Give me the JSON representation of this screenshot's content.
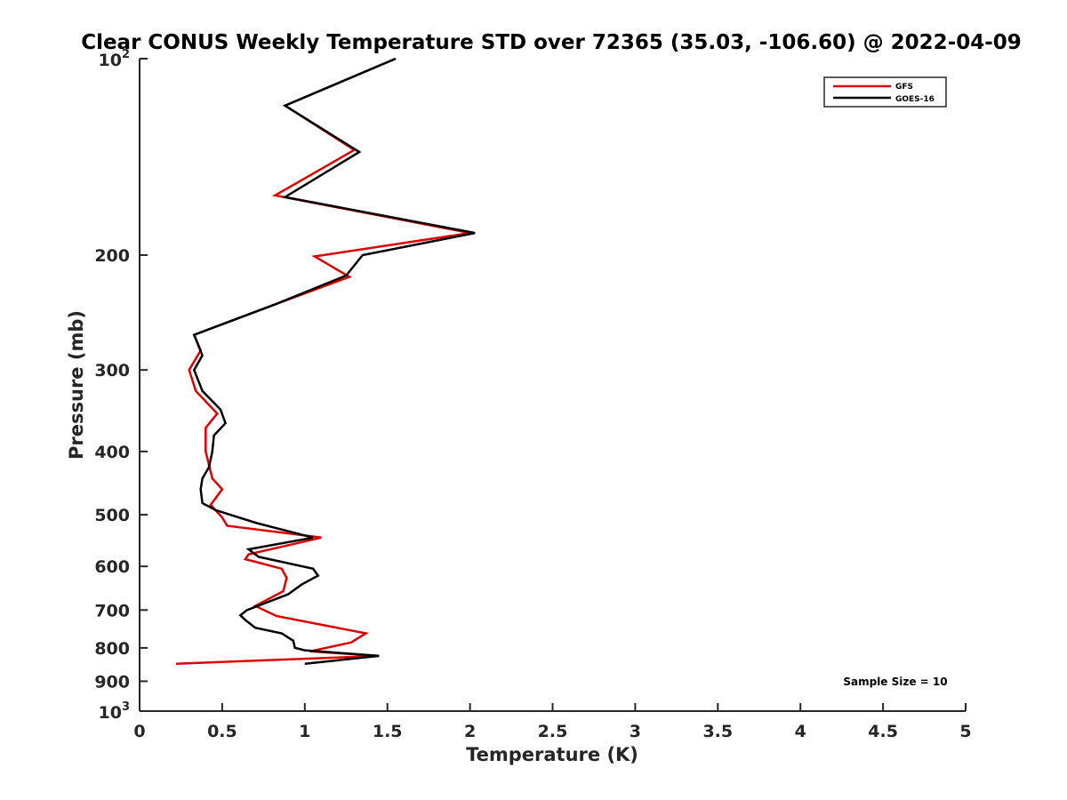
{
  "chart_data": {
    "type": "line",
    "title": "Clear CONUS Weekly Temperature STD over 72365 (35.03, -106.60) @ 2022-04-09",
    "xlabel": "Temperature (K)",
    "ylabel": "Pressure (mb)",
    "xlim": [
      0,
      5
    ],
    "ylim": [
      100,
      1000
    ],
    "y_scale": "log",
    "y_reversed": true,
    "grid": false,
    "legend_position": "top-right",
    "x_ticks": [
      "0",
      "0.5",
      "1",
      "1.5",
      "2",
      "2.5",
      "3",
      "3.5",
      "4",
      "4.5",
      "5"
    ],
    "y_ticks": [
      {
        "value": 100,
        "base": "10",
        "exp": "2",
        "label": ""
      },
      {
        "value": 200,
        "label": "200"
      },
      {
        "value": 300,
        "label": "300"
      },
      {
        "value": 400,
        "label": "400"
      },
      {
        "value": 500,
        "label": "500"
      },
      {
        "value": 600,
        "label": "600"
      },
      {
        "value": 700,
        "label": "700"
      },
      {
        "value": 800,
        "label": "800"
      },
      {
        "value": 900,
        "label": "900"
      },
      {
        "value": 1000,
        "base": "10",
        "exp": "3",
        "label": ""
      }
    ],
    "annotation": "Sample Size = 10",
    "series": [
      {
        "name": "GFS",
        "color": "#e00000",
        "points": [
          [
            1.55,
            100
          ],
          [
            0.88,
            118
          ],
          [
            1.3,
            138
          ],
          [
            0.82,
            162
          ],
          [
            2.0,
            185
          ],
          [
            1.06,
            201
          ],
          [
            1.27,
            216
          ],
          [
            0.82,
            238
          ],
          [
            0.33,
            265
          ],
          [
            0.37,
            280
          ],
          [
            0.3,
            300
          ],
          [
            0.34,
            323
          ],
          [
            0.47,
            350
          ],
          [
            0.4,
            368
          ],
          [
            0.4,
            400
          ],
          [
            0.44,
            440
          ],
          [
            0.5,
            457
          ],
          [
            0.43,
            483
          ],
          [
            0.5,
            505
          ],
          [
            0.53,
            520
          ],
          [
            1.1,
            542
          ],
          [
            0.66,
            575
          ],
          [
            0.64,
            585
          ],
          [
            0.86,
            605
          ],
          [
            0.89,
            625
          ],
          [
            0.87,
            655
          ],
          [
            0.7,
            690
          ],
          [
            0.83,
            715
          ],
          [
            1.37,
            760
          ],
          [
            1.28,
            785
          ],
          [
            1.03,
            810
          ],
          [
            1.3,
            818
          ],
          [
            1.45,
            823
          ],
          [
            0.22,
            846
          ]
        ]
      },
      {
        "name": "GOES-16",
        "color": "#000000",
        "points": [
          [
            1.55,
            100
          ],
          [
            0.88,
            118
          ],
          [
            1.33,
            139
          ],
          [
            0.88,
            163
          ],
          [
            2.03,
            185
          ],
          [
            1.35,
            200
          ],
          [
            1.25,
            215
          ],
          [
            0.82,
            238
          ],
          [
            0.33,
            265
          ],
          [
            0.38,
            285
          ],
          [
            0.33,
            300
          ],
          [
            0.38,
            323
          ],
          [
            0.49,
            345
          ],
          [
            0.52,
            362
          ],
          [
            0.45,
            378
          ],
          [
            0.44,
            400
          ],
          [
            0.42,
            423
          ],
          [
            0.38,
            440
          ],
          [
            0.37,
            457
          ],
          [
            0.38,
            480
          ],
          [
            0.46,
            492
          ],
          [
            0.71,
            515
          ],
          [
            1.05,
            542
          ],
          [
            0.66,
            565
          ],
          [
            0.72,
            580
          ],
          [
            1.05,
            605
          ],
          [
            1.08,
            620
          ],
          [
            0.98,
            640
          ],
          [
            0.9,
            662
          ],
          [
            0.65,
            700
          ],
          [
            0.61,
            713
          ],
          [
            0.64,
            725
          ],
          [
            0.7,
            745
          ],
          [
            0.86,
            760
          ],
          [
            0.93,
            780
          ],
          [
            0.94,
            800
          ],
          [
            1.0,
            807
          ],
          [
            1.45,
            823
          ],
          [
            1.0,
            846
          ]
        ]
      }
    ]
  }
}
